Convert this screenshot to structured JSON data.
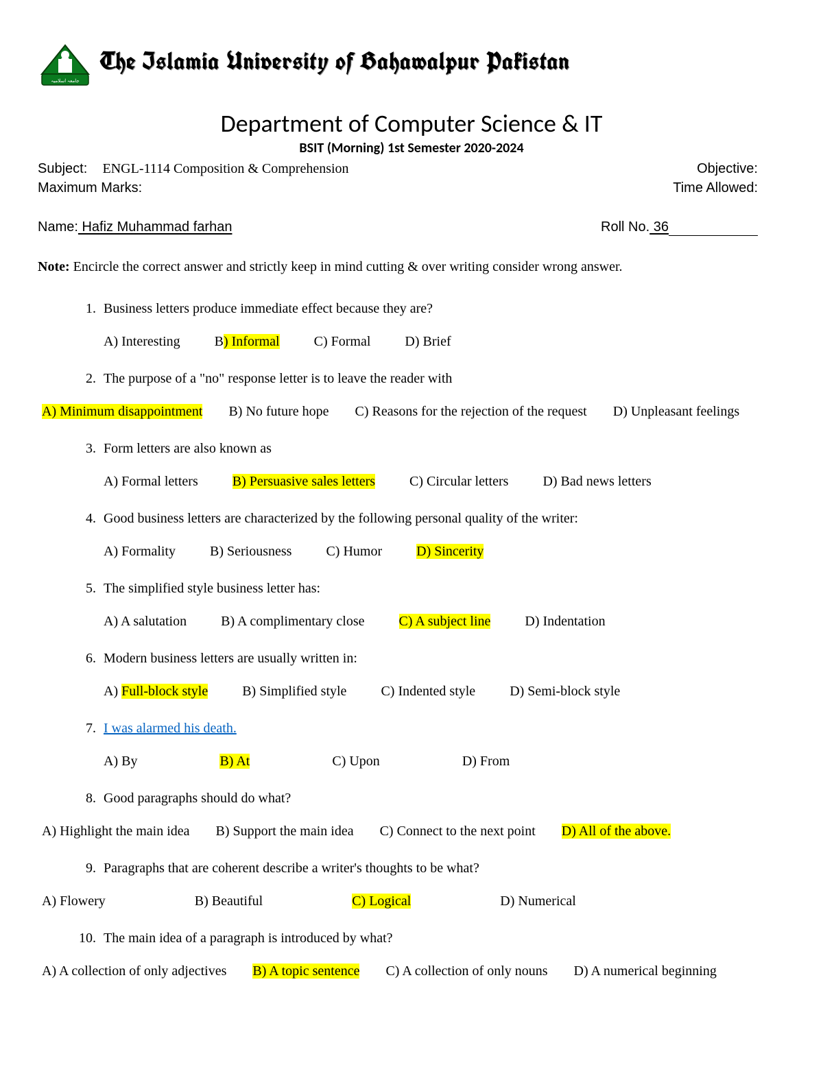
{
  "header": {
    "university": "The Islamia University of Bahawalpur Pakistan",
    "logo_primary": "#0a7a1f",
    "logo_accent": "#0b3d0b",
    "department": "Department of Computer Science & IT",
    "program": "BSIT (Morning) 1st Semester 2020-2024"
  },
  "info": {
    "subject_label": "Subject:",
    "subject_value": "ENGL-1114 Composition & Comprehension",
    "objective_label": "Objective:",
    "marks_label": "Maximum Marks:",
    "time_label": "Time Allowed:",
    "name_label": "Name:",
    "name_value": " Hafiz Muhammad farhan        ",
    "roll_label": "Roll No.",
    "roll_value": " 36"
  },
  "note": {
    "label": "Note:",
    "text": " Encircle the correct answer and strictly keep in mind cutting & over writing consider wrong answer."
  },
  "highlight_color": "#ffff00",
  "questions": [
    {
      "q": "Business letters produce immediate effect because they are?",
      "opts": [
        "A) Interesting",
        "B) Informal",
        "C) Formal",
        "D) Brief"
      ],
      "hl_index": 1,
      "hl_partial_prefix": "B",
      "hl_partial_text": ") Informal",
      "layout": "indented"
    },
    {
      "q": "The purpose of a \"no\" response letter is to leave the reader with",
      "opts": [
        "A) Minimum disappointment",
        "B) No future hope",
        "C) Reasons for the rejection of the request",
        "D) Unpleasant feelings"
      ],
      "hl_index": 0,
      "layout": "flush"
    },
    {
      "q": " Form letters are also known as",
      "opts": [
        "A) Formal letters",
        "B) Persuasive sales letters",
        "C) Circular letters",
        "D) Bad news letters"
      ],
      "hl_index": 1,
      "layout": "indented"
    },
    {
      "q": " Good business letters are characterized by the following personal quality of the writer:",
      "opts": [
        "A) Formality",
        "B) Seriousness",
        "C) Humor",
        "D) Sincerity"
      ],
      "hl_index": 3,
      "layout": "indented"
    },
    {
      "q": "The simplified style business letter has:",
      "opts": [
        "A) A salutation",
        "B) A complimentary close",
        "C) A subject line",
        "D) Indentation"
      ],
      "hl_index": 2,
      "layout": "indented"
    },
    {
      "q": "Modern business letters are usually written in:",
      "opts": [
        "A) Full-block style",
        "B) Simplified style",
        "C) Indented style",
        "D) Semi-block style"
      ],
      "hl_index": 0,
      "hl_partial_prefix": "A) ",
      "hl_partial_text": "Full-block style",
      "layout": "indented"
    },
    {
      "q_link": "I was alarmed             his death.",
      "opts": [
        "A) By",
        "B) At",
        "C) Upon",
        "D) From"
      ],
      "hl_index": 1,
      "layout": "indented-wide"
    },
    {
      "q": "Good paragraphs should do what?",
      "opts": [
        "A) Highlight the main idea",
        "B) Support the main idea",
        "C) Connect to the next point",
        "D) All of the above."
      ],
      "hl_index": 3,
      "layout": "flush"
    },
    {
      "q": " Paragraphs that are coherent describe a writer's thoughts to be what?",
      "opts": [
        "A) Flowery",
        "B) Beautiful",
        "C) Logical",
        "D) Numerical"
      ],
      "hl_index": 2,
      "layout": "flush-wide"
    },
    {
      "q": "The main idea of a paragraph is introduced by what?",
      "opts": [
        "A) A collection of only adjectives",
        "B) A topic sentence",
        "C) A collection of only nouns",
        "D) A numerical beginning"
      ],
      "hl_index": 1,
      "layout": "flush"
    }
  ]
}
